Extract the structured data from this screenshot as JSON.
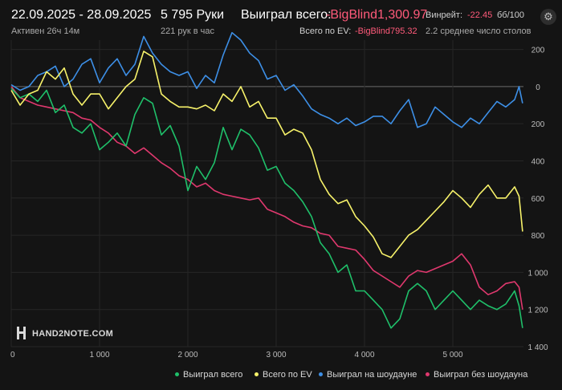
{
  "header": {
    "date_range": "22.09.2025 - 28.09.2025",
    "active": "Активен 26ч 14м",
    "hands": "5 795 Руки",
    "hands_per_hour": "221 рук в час",
    "won_label": "Выиграл всего:",
    "won_value": "-BigBlind1,300.97",
    "ev_label": "Всего по EV:",
    "ev_value": "-BigBlind795.32",
    "winrate_label": "Винрейт:",
    "winrate_value": "-22.45",
    "winrate_unit": "бб/100",
    "tables": "2.2 среднее число столов"
  },
  "settings_icon": "gear-icon",
  "watermark": "HAND2NOTE.COM",
  "colors": {
    "background": "#141414",
    "negative": "#ff5a7a",
    "won": "#1fc06a",
    "ev": "#f7f26a",
    "showdown": "#3d8fe6",
    "non_showdown": "#e0386e"
  },
  "chart_data": {
    "type": "line",
    "xlabel": "",
    "ylabel": "",
    "xlim": [
      0,
      5800
    ],
    "ylim": [
      -1400,
      250
    ],
    "y_inverted_display": true,
    "grid": true,
    "x_ticks": [
      0,
      1000,
      2000,
      3000,
      4000,
      5000
    ],
    "x_tick_labels": [
      "0",
      "1 000",
      "2 000",
      "3 000",
      "4 000",
      "5 000"
    ],
    "y_ticks": [
      200,
      0,
      -200,
      -400,
      -600,
      -800,
      -1000,
      -1200,
      -1400
    ],
    "y_tick_labels": [
      "200",
      "0",
      "200",
      "400",
      "600",
      "800",
      "1 000",
      "1 200",
      "1 400"
    ],
    "legend_position": "bottom-right",
    "series": [
      {
        "name": "Выиграл всего",
        "color": "#1fc06a",
        "x": [
          0,
          100,
          200,
          300,
          400,
          500,
          600,
          700,
          800,
          900,
          1000,
          1100,
          1200,
          1300,
          1400,
          1500,
          1600,
          1700,
          1800,
          1900,
          2000,
          2100,
          2200,
          2300,
          2400,
          2500,
          2600,
          2700,
          2800,
          2900,
          3000,
          3100,
          3200,
          3300,
          3400,
          3500,
          3600,
          3700,
          3800,
          3900,
          4000,
          4100,
          4200,
          4300,
          4400,
          4500,
          4600,
          4700,
          4800,
          4900,
          5000,
          5100,
          5200,
          5300,
          5400,
          5500,
          5600,
          5700,
          5750,
          5790
        ],
        "values": [
          -10,
          -60,
          -40,
          -80,
          -20,
          -140,
          -100,
          -220,
          -250,
          -200,
          -340,
          -300,
          -250,
          -320,
          -150,
          -60,
          -90,
          -260,
          -210,
          -320,
          -560,
          -430,
          -500,
          -410,
          -220,
          -340,
          -230,
          -260,
          -330,
          -450,
          -430,
          -520,
          -560,
          -620,
          -700,
          -840,
          -900,
          -1000,
          -960,
          -1100,
          -1100,
          -1150,
          -1200,
          -1300,
          -1250,
          -1100,
          -1060,
          -1100,
          -1200,
          -1150,
          -1100,
          -1150,
          -1200,
          -1150,
          -1180,
          -1200,
          -1170,
          -1100,
          -1180,
          -1300
        ]
      },
      {
        "name": "Всего по EV",
        "color": "#f7f26a",
        "x": [
          0,
          100,
          200,
          300,
          400,
          500,
          600,
          700,
          800,
          900,
          1000,
          1100,
          1200,
          1300,
          1400,
          1500,
          1600,
          1700,
          1800,
          1900,
          2000,
          2100,
          2200,
          2300,
          2400,
          2500,
          2600,
          2700,
          2800,
          2900,
          3000,
          3100,
          3200,
          3300,
          3400,
          3500,
          3600,
          3700,
          3800,
          3900,
          4000,
          4100,
          4200,
          4300,
          4400,
          4500,
          4600,
          4700,
          4800,
          4900,
          5000,
          5100,
          5200,
          5300,
          5400,
          5500,
          5600,
          5700,
          5750,
          5790
        ],
        "values": [
          -20,
          -100,
          -40,
          -20,
          80,
          40,
          100,
          -40,
          -100,
          -40,
          -40,
          -120,
          -60,
          0,
          40,
          190,
          160,
          -40,
          -80,
          -110,
          -110,
          -120,
          -100,
          -130,
          -40,
          -80,
          0,
          -110,
          -80,
          -170,
          -170,
          -260,
          -230,
          -250,
          -340,
          -500,
          -580,
          -630,
          -610,
          -700,
          -750,
          -810,
          -900,
          -920,
          -860,
          -800,
          -770,
          -720,
          -670,
          -620,
          -560,
          -600,
          -650,
          -580,
          -530,
          -600,
          -600,
          -540,
          -590,
          -780
        ]
      },
      {
        "name": "Выиграл на шоудауне",
        "color": "#3d8fe6",
        "x": [
          0,
          100,
          200,
          300,
          400,
          500,
          600,
          700,
          800,
          900,
          1000,
          1100,
          1200,
          1300,
          1400,
          1500,
          1600,
          1700,
          1800,
          1900,
          2000,
          2100,
          2200,
          2300,
          2400,
          2500,
          2600,
          2700,
          2800,
          2900,
          3000,
          3100,
          3200,
          3300,
          3400,
          3500,
          3600,
          3700,
          3800,
          3900,
          4000,
          4100,
          4200,
          4300,
          4400,
          4500,
          4600,
          4700,
          4800,
          4900,
          5000,
          5100,
          5200,
          5300,
          5400,
          5500,
          5600,
          5700,
          5750,
          5790
        ],
        "values": [
          10,
          -20,
          0,
          60,
          80,
          110,
          0,
          40,
          120,
          150,
          20,
          100,
          150,
          60,
          120,
          270,
          180,
          120,
          80,
          60,
          80,
          -10,
          60,
          20,
          170,
          290,
          250,
          180,
          140,
          40,
          60,
          -20,
          10,
          -50,
          -120,
          -150,
          -170,
          -200,
          -170,
          -210,
          -190,
          -160,
          -160,
          -200,
          -130,
          -70,
          -220,
          -200,
          -110,
          -150,
          -190,
          -220,
          -170,
          -200,
          -140,
          -80,
          -110,
          -70,
          0,
          -90
        ]
      },
      {
        "name": "Выиграл без шоудауна",
        "color": "#e0386e",
        "x": [
          0,
          100,
          200,
          300,
          400,
          500,
          600,
          700,
          800,
          900,
          1000,
          1100,
          1200,
          1300,
          1400,
          1500,
          1600,
          1700,
          1800,
          1900,
          2000,
          2100,
          2200,
          2300,
          2400,
          2500,
          2600,
          2700,
          2800,
          2900,
          3000,
          3100,
          3200,
          3300,
          3400,
          3500,
          3600,
          3700,
          3800,
          3900,
          4000,
          4100,
          4200,
          4300,
          4400,
          4500,
          4600,
          4700,
          4800,
          4900,
          5000,
          5100,
          5200,
          5300,
          5400,
          5500,
          5600,
          5700,
          5750,
          5790
        ],
        "values": [
          0,
          -60,
          -80,
          -100,
          -110,
          -120,
          -130,
          -140,
          -170,
          -180,
          -220,
          -250,
          -300,
          -320,
          -360,
          -330,
          -370,
          -410,
          -440,
          -480,
          -500,
          -540,
          -520,
          -560,
          -580,
          -590,
          -600,
          -610,
          -600,
          -660,
          -680,
          -700,
          -730,
          -750,
          -760,
          -790,
          -800,
          -860,
          -870,
          -880,
          -930,
          -990,
          -1020,
          -1050,
          -1080,
          -1020,
          -990,
          -1000,
          -980,
          -960,
          -940,
          -900,
          -960,
          -1080,
          -1120,
          -1100,
          -1060,
          -1050,
          -1080,
          -1200
        ]
      }
    ]
  }
}
